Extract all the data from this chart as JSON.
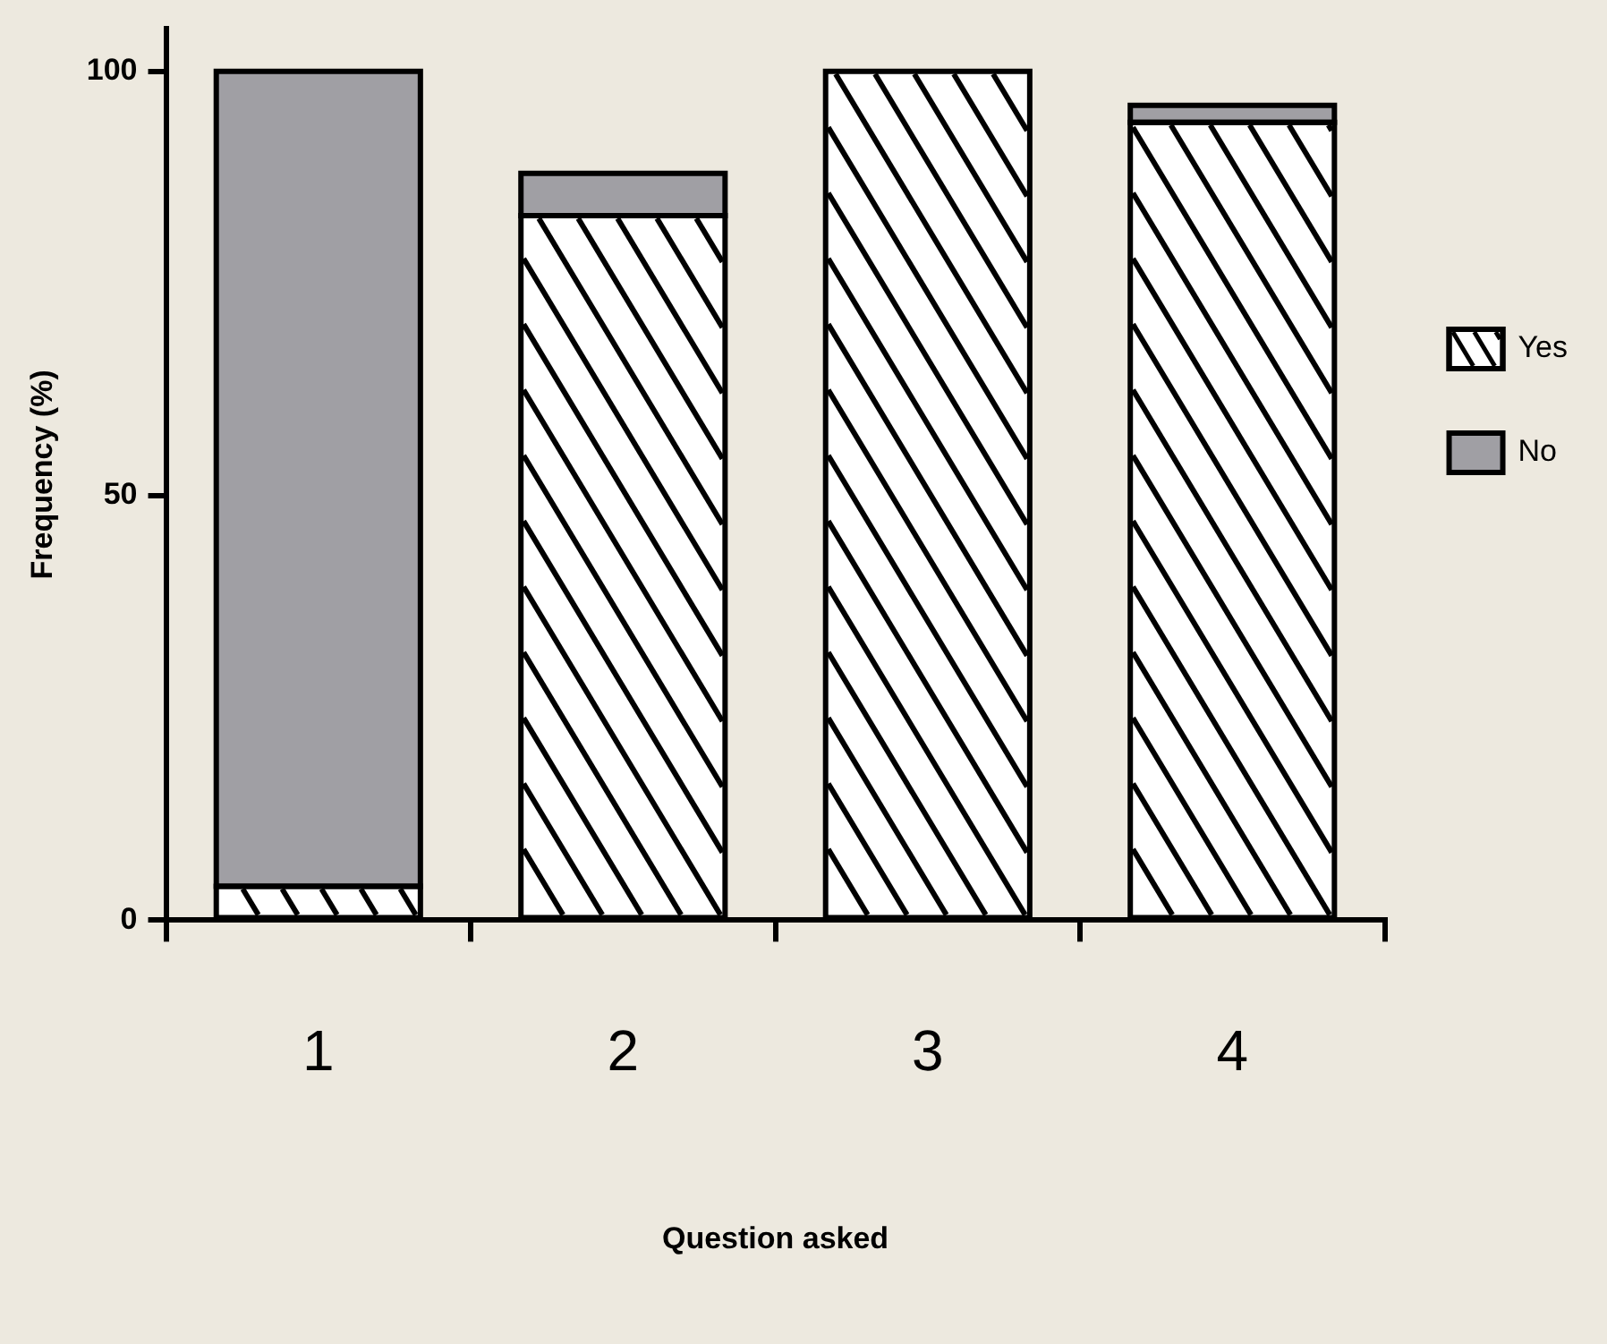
{
  "chart_data": {
    "type": "bar",
    "xlabel": "Question asked",
    "ylabel": "Frequency (%)",
    "categories": [
      "1",
      "2",
      "3",
      "4"
    ],
    "series": [
      {
        "name": "Yes",
        "color": "#ffffff",
        "values": [
          4,
          83,
          100,
          94
        ]
      },
      {
        "name": "No",
        "color": "#a09fa4",
        "values": [
          96,
          5,
          0,
          2
        ]
      }
    ],
    "stacked": true,
    "ylim": [
      0,
      105
    ],
    "yticks": [
      0,
      50,
      100
    ],
    "grid": false,
    "legend": "right"
  }
}
